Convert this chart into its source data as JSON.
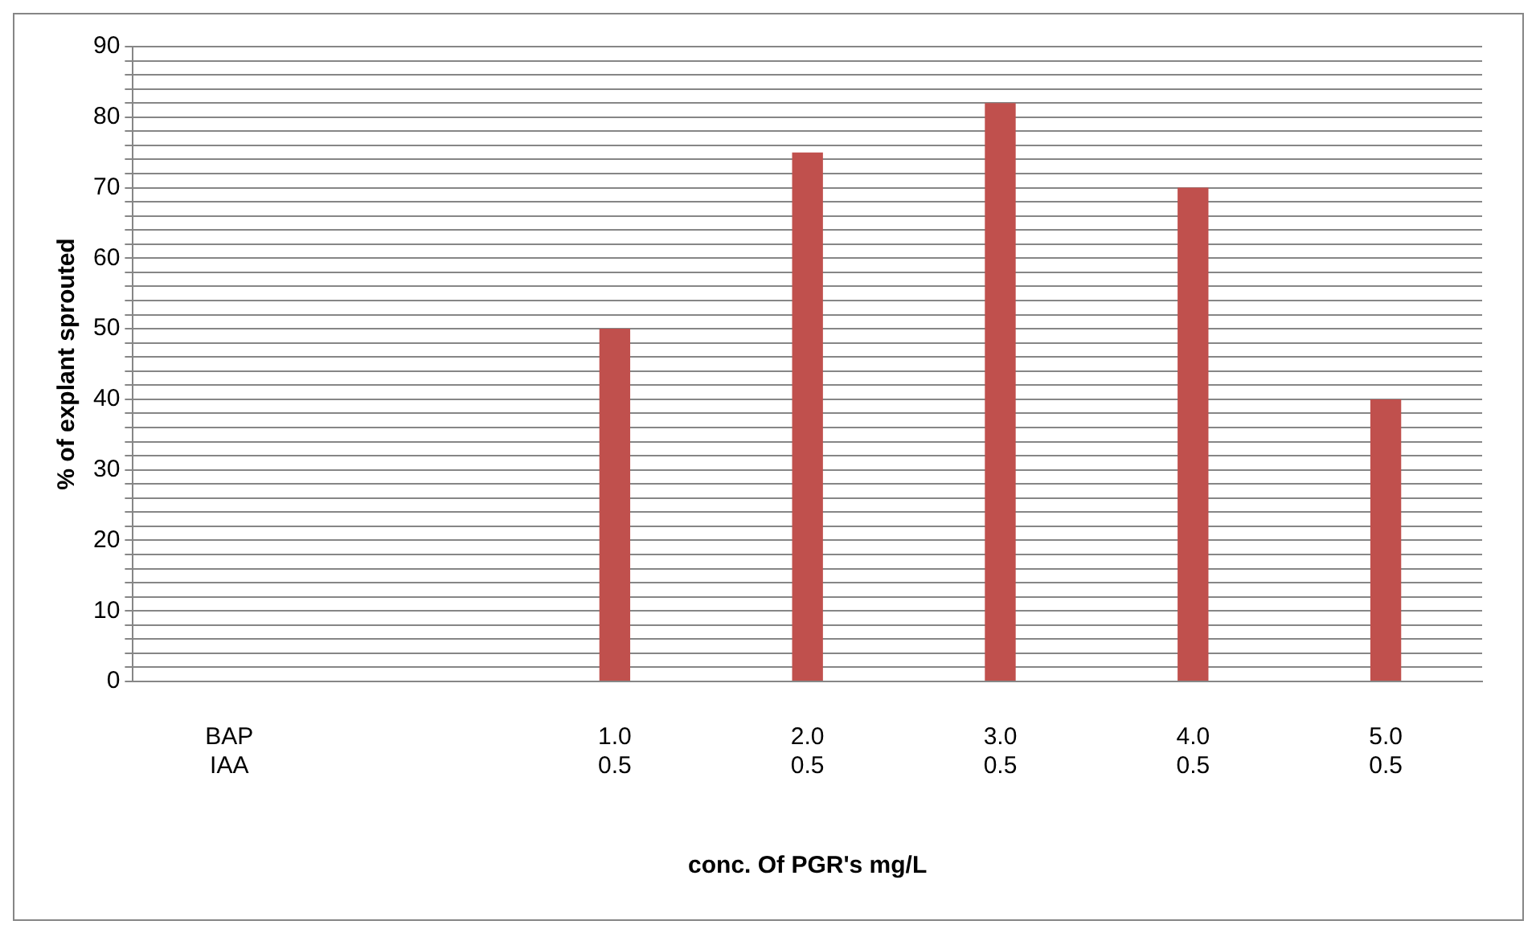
{
  "chart_data": {
    "type": "bar",
    "xlabel": "conc. Of PGR's mg/L",
    "ylabel": "% of explant sprouted",
    "categories": [
      "BAP\nIAA",
      null,
      "1.0\n0.5",
      "2.0\n0.5",
      "3.0\n0.5",
      "4.0\n0.5",
      "5.0\n0.5"
    ],
    "values": [
      null,
      null,
      50,
      75,
      82,
      70,
      40
    ],
    "color": "#c0504d",
    "ylim": [
      0,
      90
    ],
    "yticks": [
      0,
      {
        "value": 2,
        "label": null
      },
      {
        "value": 4,
        "label": null
      },
      {
        "value": 6,
        "label": null
      },
      {
        "value": 8,
        "label": null
      },
      10,
      {
        "value": 12,
        "label": null
      },
      {
        "value": 14,
        "label": null
      },
      {
        "value": 16,
        "label": null
      },
      {
        "value": 18,
        "label": null
      },
      20,
      {
        "value": 22,
        "label": null
      },
      {
        "value": 24,
        "label": null
      },
      {
        "value": 26,
        "label": null
      },
      {
        "value": 28,
        "label": null
      },
      30,
      {
        "value": 32,
        "label": null
      },
      {
        "value": 34,
        "label": null
      },
      {
        "value": 36,
        "label": null
      },
      {
        "value": 38,
        "label": null
      },
      40,
      {
        "value": 42,
        "label": null
      },
      {
        "value": 44,
        "label": null
      },
      {
        "value": 46,
        "label": null
      },
      {
        "value": 48,
        "label": null
      },
      50,
      {
        "value": 52,
        "label": null
      },
      {
        "value": 54,
        "label": null
      },
      {
        "value": 56,
        "label": null
      },
      {
        "value": 58,
        "label": null
      },
      60,
      {
        "value": 62,
        "label": null
      },
      {
        "value": 64,
        "label": null
      },
      {
        "value": 66,
        "label": null
      },
      {
        "value": 68,
        "label": null
      },
      70,
      {
        "value": 72,
        "label": null
      },
      {
        "value": 74,
        "label": null
      },
      {
        "value": 76,
        "label": null
      },
      {
        "value": 78,
        "label": null
      },
      80,
      {
        "value": 82,
        "label": null
      },
      {
        "value": 84,
        "label": null
      },
      {
        "value": 86,
        "label": null
      },
      {
        "value": 88,
        "label": null
      },
      90
    ],
    "grid": "y",
    "legend": false
  }
}
